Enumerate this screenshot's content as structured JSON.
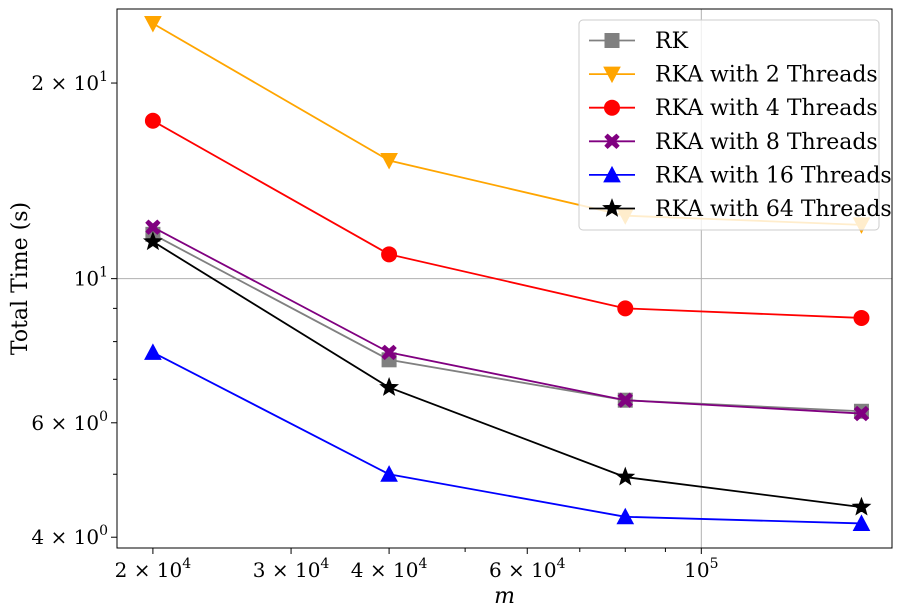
{
  "chart_data": {
    "type": "line",
    "xlabel": "m",
    "ylabel": "Total Time (s)",
    "xscale": "log",
    "yscale": "log",
    "xlim": [
      18000,
      175000
    ],
    "ylim": [
      3.85,
      26.0
    ],
    "grid": "major",
    "legend_position": "top-right",
    "x_ticks": [
      {
        "value": 20000,
        "mant": "2",
        "exp": "4"
      },
      {
        "value": 30000,
        "mant": "3",
        "exp": "4"
      },
      {
        "value": 40000,
        "mant": "4",
        "exp": "4"
      },
      {
        "value": 60000,
        "mant": "6",
        "exp": "4"
      },
      {
        "value": 100000,
        "mant": "",
        "exp": "5"
      }
    ],
    "y_ticks": [
      {
        "value": 4,
        "mant": "4",
        "exp": "0"
      },
      {
        "value": 6,
        "mant": "6",
        "exp": "0"
      },
      {
        "value": 10,
        "mant": "",
        "exp": "1"
      },
      {
        "value": 20,
        "mant": "2",
        "exp": "1"
      }
    ],
    "x": [
      20000,
      40000,
      80000,
      160000
    ],
    "series": [
      {
        "name": "RK",
        "color": "#808080",
        "marker": "square",
        "values": [
          11.7,
          7.5,
          6.5,
          6.25
        ]
      },
      {
        "name": "RKA with 2 Threads",
        "color": "#FFA500",
        "marker": "triangle-down",
        "values": [
          24.7,
          15.2,
          12.5,
          12.1
        ]
      },
      {
        "name": "RKA with 4 Threads",
        "color": "#FF0000",
        "marker": "circle",
        "values": [
          17.5,
          10.9,
          9.0,
          8.7
        ]
      },
      {
        "name": "RKA with 8 Threads",
        "color": "#800080",
        "marker": "x",
        "values": [
          12.0,
          7.7,
          6.5,
          6.2
        ]
      },
      {
        "name": "RKA with 16 Threads",
        "color": "#0000FF",
        "marker": "triangle-up",
        "values": [
          7.7,
          5.0,
          4.3,
          4.2
        ]
      },
      {
        "name": "RKA with 64 Threads",
        "color": "#000000",
        "marker": "star",
        "values": [
          11.4,
          6.8,
          4.95,
          4.45
        ]
      }
    ]
  }
}
